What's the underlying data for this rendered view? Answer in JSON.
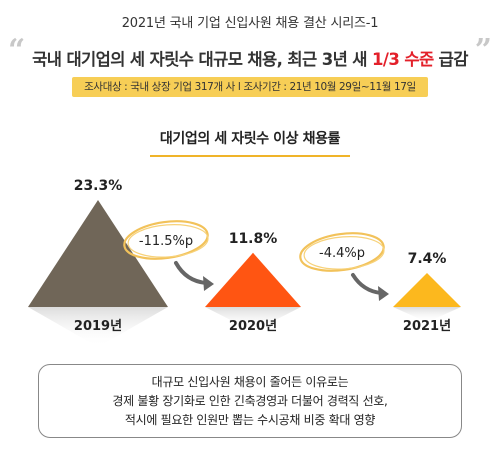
{
  "series_title": "2021년 국내 기업 신입사원 채용 결산 시리즈-1",
  "headline": {
    "before": "국내 대기업의 세 자릿수 대규모 채용, 최근 3년 새 ",
    "highlight": "1/3 수준",
    "after": " 급감"
  },
  "survey": {
    "target": "조사대상 : 국내 상장 기업 317개 사",
    "separator": "l",
    "period": "조사기간 : 21년 10월 29일~11월 17일"
  },
  "colors": {
    "bar_2019": "#706658",
    "bar_2020": "#ff5512",
    "bar_2021": "#fcb81e",
    "highlight": "#e3202a",
    "survey_bg": "#f7ce56"
  },
  "chart_data": {
    "type": "bar",
    "shape": "triangle",
    "title": "대기업의 세 자릿수 이상 채용률",
    "categories": [
      "2019년",
      "2020년",
      "2021년"
    ],
    "values": [
      23.3,
      11.8,
      7.4
    ],
    "value_labels": [
      "23.3%",
      "11.8%",
      "7.4%"
    ],
    "unit": "%",
    "changes": [
      {
        "from": "2019년",
        "to": "2020년",
        "value": -11.5,
        "label": "-11.5%p"
      },
      {
        "from": "2020년",
        "to": "2021년",
        "value": -4.4,
        "label": "-4.4%p"
      }
    ],
    "ylim": [
      0,
      23.3
    ]
  },
  "note": {
    "lines": [
      "대규모 신입사원 채용이 줄어든 이유로는",
      "경제 불황 장기화로 인한 긴축경영과 더불어 경력직 선호,",
      "적시에 필요한 인원만 뽑는 수시공채 비중 확대 영향"
    ]
  }
}
